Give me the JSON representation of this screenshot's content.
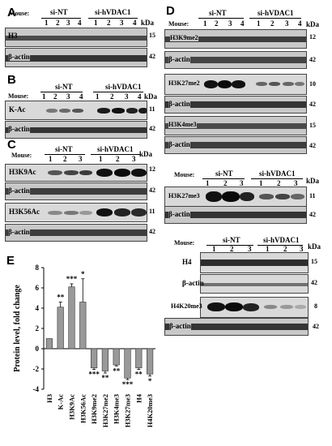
{
  "panels": {
    "A": {
      "letter": "A",
      "mouse": "Mouse:",
      "groups": [
        "si-NT",
        "si-hVDAC1"
      ],
      "lanes": [
        "1",
        "2",
        "3",
        "4",
        "1",
        "2",
        "3",
        "4"
      ],
      "kda": "kDa",
      "blots": [
        {
          "label": "H3",
          "kda": "15"
        },
        {
          "label": "β-actin",
          "kda": "42"
        }
      ]
    },
    "B": {
      "letter": "B",
      "mouse": "Mouse:",
      "groups": [
        "si-NT",
        "si-hVDAC1"
      ],
      "lanes": [
        "1",
        "2",
        "3",
        "4",
        "1",
        "2",
        "3",
        "4"
      ],
      "kda": "kDa",
      "blots": [
        {
          "label": "K-Ac",
          "kda": "11"
        },
        {
          "label": "β-actin",
          "kda": "42"
        }
      ]
    },
    "C": {
      "letter": "C",
      "mouse": "Mouse:",
      "groups": [
        "si-NT",
        "si-hVDAC1"
      ],
      "lanes": [
        "1",
        "2",
        "3",
        "1",
        "2",
        "3"
      ],
      "kda": "kDa",
      "blots": [
        {
          "label": "H3K9Ac",
          "kda": "12"
        },
        {
          "label": "β-actin",
          "kda": "42"
        },
        {
          "label": "H3K56Ac",
          "kda": "11"
        },
        {
          "label": "β-actin",
          "kda": "42"
        }
      ]
    },
    "D": {
      "letter": "D",
      "mouse": "Mouse:",
      "groups": [
        "si-NT",
        "si-hVDAC1"
      ],
      "lanes": [
        "1",
        "2",
        "3",
        "4",
        "1",
        "2",
        "3",
        "4"
      ],
      "kda": "kDa",
      "blots": [
        {
          "label": "H3K9me2",
          "kda": "12"
        },
        {
          "label": "β-actin",
          "kda": "42"
        },
        {
          "label": "H3K27me2",
          "kda": "10"
        },
        {
          "label": "β-actin",
          "kda": "42"
        },
        {
          "label": "H3K4me3",
          "kda": "15"
        },
        {
          "label": "β-actin",
          "kda": "42"
        }
      ]
    },
    "D2": {
      "mouse": "Mouse:",
      "groups": [
        "si-NT",
        "si-hVDAC1"
      ],
      "lanes": [
        "1",
        "2",
        "3",
        "1",
        "2",
        "3"
      ],
      "kda": "kDa",
      "blots": [
        {
          "label": "H3K27me3",
          "kda": "11"
        },
        {
          "label": "β-actin",
          "kda": "42"
        }
      ]
    },
    "D3": {
      "mouse": "Mouse:",
      "groups": [
        "si-NT",
        "si-hVDAC1"
      ],
      "lanes": [
        "1",
        "2",
        "3",
        "1",
        "2",
        "3"
      ],
      "kda": "kDa",
      "blots": [
        {
          "label": "H4",
          "kda": "15"
        },
        {
          "label": "β-actin",
          "kda": "42"
        },
        {
          "label": "H4K20me3",
          "kda": "8"
        },
        {
          "label": "β-actin",
          "kda": "42"
        }
      ]
    },
    "E": {
      "letter": "E"
    }
  },
  "chart_data": {
    "type": "bar",
    "title": "",
    "xlabel": "",
    "ylabel": "Protein level, fold change",
    "ylim": [
      -4,
      8
    ],
    "yticks": [
      -4,
      -2,
      0,
      2,
      4,
      6,
      8
    ],
    "categories": [
      "H3",
      "K-Ac",
      "H3K9Ac",
      "H3K56Ac",
      "H3K9me2",
      "H3K27me2",
      "H3K4me3",
      "H3K27me3",
      "H4",
      "H4K20me3"
    ],
    "values": [
      1.0,
      4.1,
      6.1,
      4.6,
      -1.9,
      -2.2,
      -1.6,
      -2.9,
      -1.9,
      -2.5
    ],
    "errors": [
      0.0,
      0.5,
      0.3,
      2.3,
      0.15,
      0.2,
      0.1,
      0.15,
      0.15,
      0.2
    ],
    "significance": [
      "",
      "**",
      "***",
      "*",
      "***",
      "**",
      "**",
      "***",
      "**",
      "*"
    ],
    "bar_color": "#999999"
  }
}
